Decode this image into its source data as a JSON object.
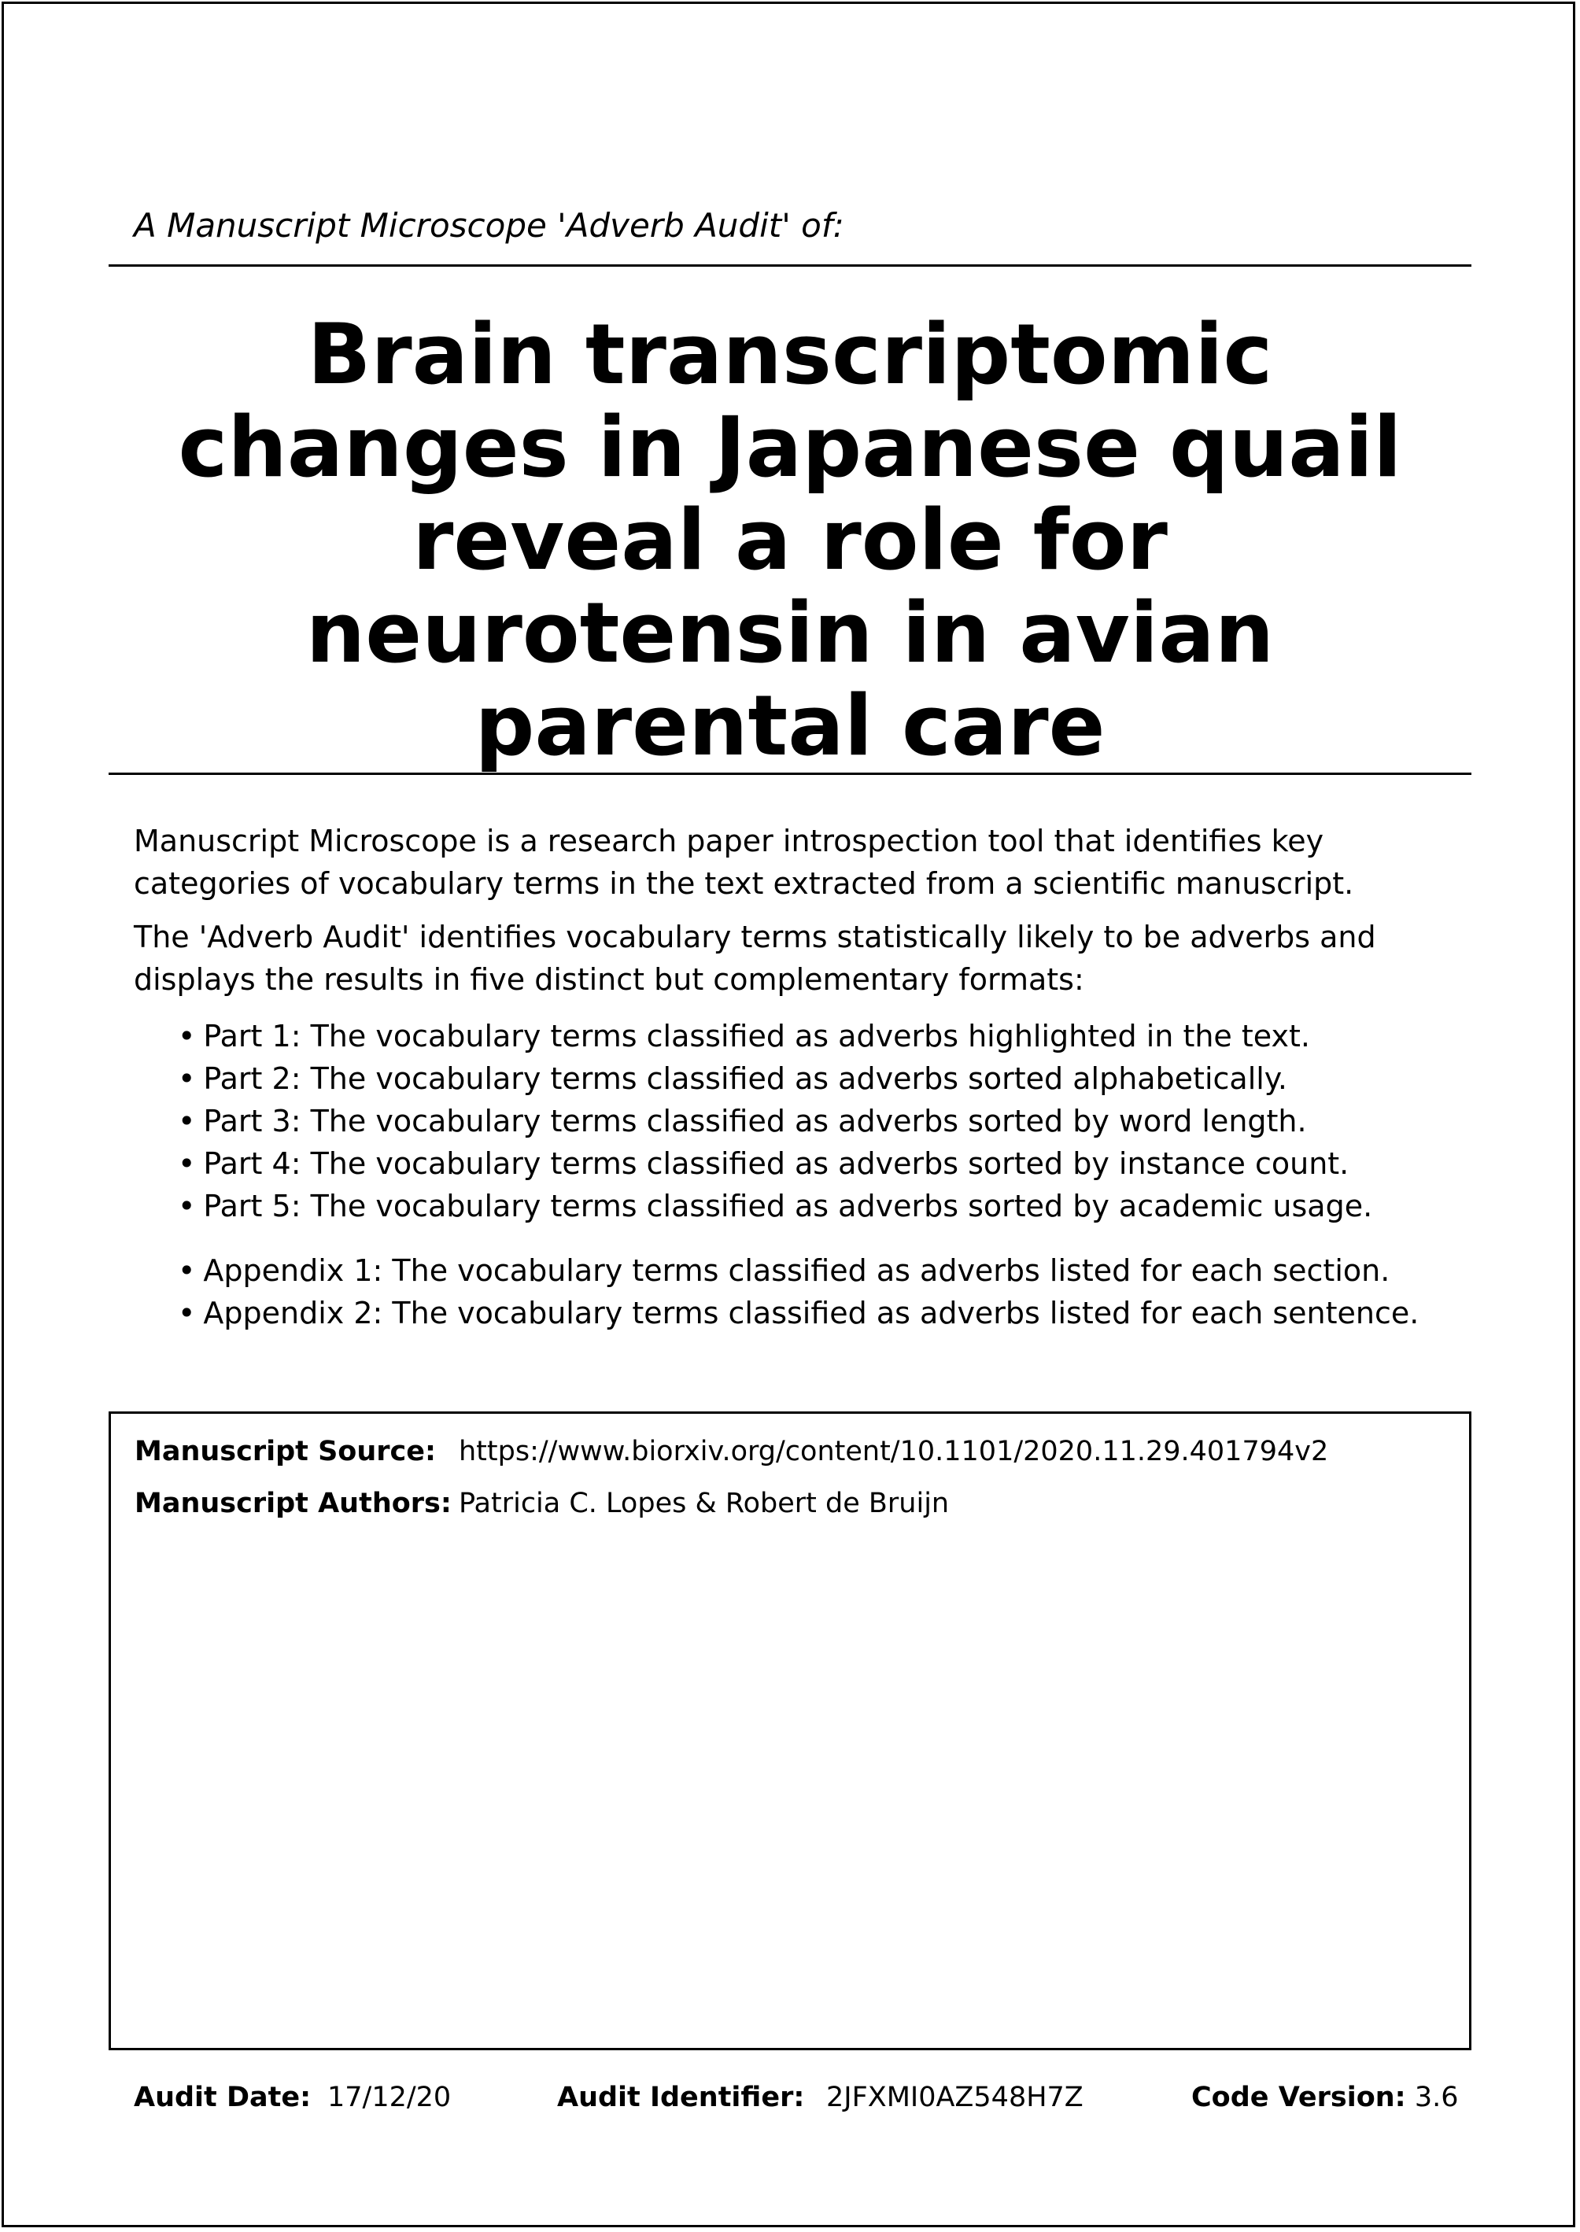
{
  "header": {
    "label": "A Manuscript Microscope 'Adverb Audit' of:"
  },
  "title": {
    "lines": [
      "Brain transcriptomic",
      "changes in Japanese quail",
      "reveal a role for",
      "neurotensin in avian",
      "parental care"
    ]
  },
  "intro": {
    "paragraph_1": "Manuscript Microscope is a research paper introspection tool that identifies key categories of vocabulary terms in the text extracted from a scientific manuscript.",
    "paragraph_2": "The 'Adverb Audit' identifies vocabulary terms statistically likely to be adverbs and displays the results in five distinct but complementary formats:",
    "parts": [
      "Part 1: The vocabulary terms classified as adverbs highlighted in the text.",
      "Part 2: The vocabulary terms classified as adverbs sorted alphabetically.",
      "Part 3: The vocabulary terms classified as adverbs sorted by word length.",
      "Part 4: The vocabulary terms classified as adverbs sorted by instance count.",
      "Part 5: The vocabulary terms classified as adverbs sorted by academic usage."
    ],
    "appendices": [
      "Appendix 1: The vocabulary terms classified as adverbs listed for each section.",
      "Appendix 2: The vocabulary terms classified as adverbs listed for each sentence."
    ]
  },
  "manuscript": {
    "source_label": "Manuscript Source:",
    "source_value": "https://www.biorxiv.org/content/10.1101/2020.11.29.401794v2",
    "authors_label": "Manuscript Authors:",
    "authors_value": "Patricia C. Lopes & Robert de Bruijn"
  },
  "footer": {
    "audit_date_label": "Audit Date:",
    "audit_date_value": "17/12/20",
    "audit_identifier_label": "Audit Identifier:",
    "audit_identifier_value": "2JFXMI0AZ548H7Z",
    "code_version_label": "Code Version:",
    "code_version_value": "3.6"
  }
}
